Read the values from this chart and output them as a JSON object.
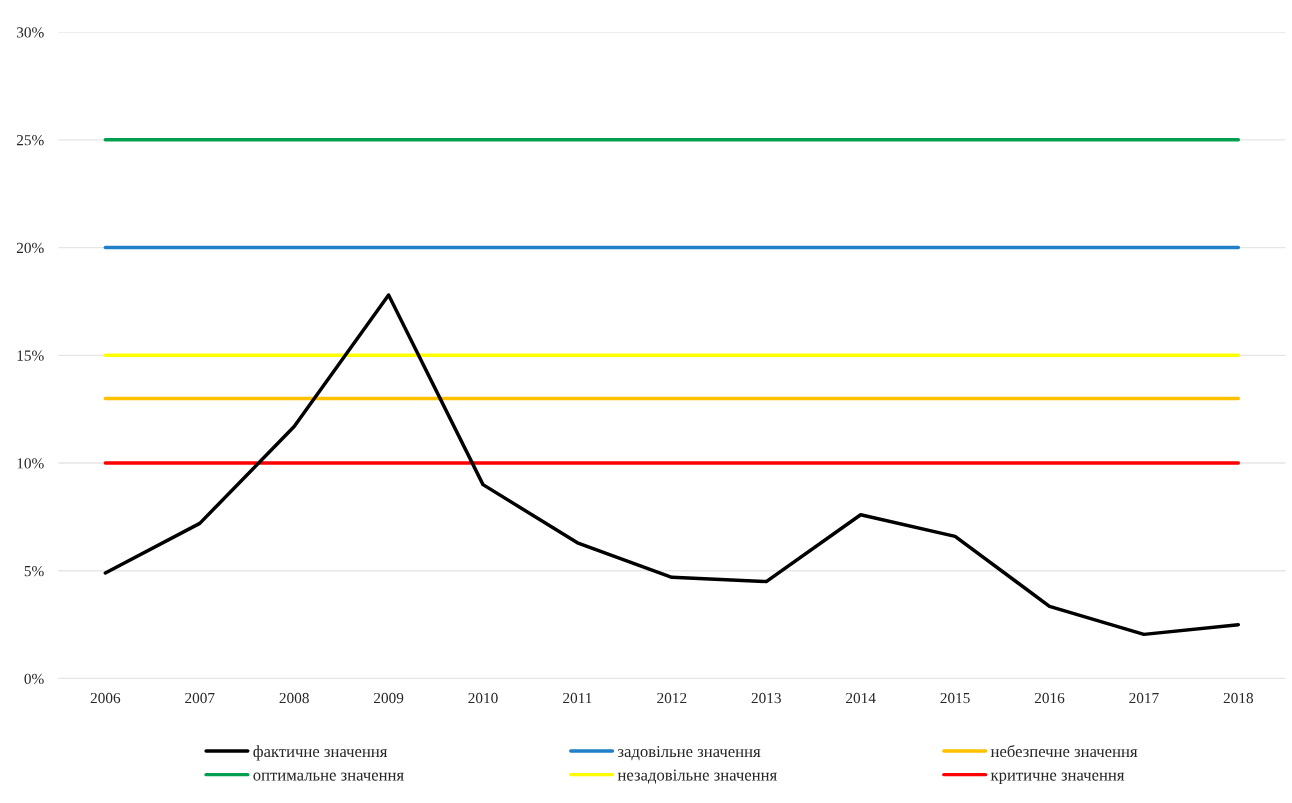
{
  "chart_data": {
    "type": "line",
    "categories": [
      "2006",
      "2007",
      "2008",
      "2009",
      "2010",
      "2011",
      "2012",
      "2013",
      "2014",
      "2015",
      "2016",
      "2017",
      "2018"
    ],
    "series": [
      {
        "name": "фактичне значення",
        "color": "#000000",
        "values": [
          4.9,
          7.2,
          11.7,
          17.8,
          9.0,
          6.3,
          4.7,
          4.5,
          7.6,
          6.6,
          3.35,
          2.05,
          2.5
        ]
      },
      {
        "name": "оптимальне значення",
        "color": "#00a050",
        "values": [
          25,
          25,
          25,
          25,
          25,
          25,
          25,
          25,
          25,
          25,
          25,
          25,
          25
        ]
      },
      {
        "name": "задовільне значення",
        "color": "#1f7fc8",
        "values": [
          20,
          20,
          20,
          20,
          20,
          20,
          20,
          20,
          20,
          20,
          20,
          20,
          20
        ]
      },
      {
        "name": "незадовільне значення",
        "color": "#ffff00",
        "values": [
          15,
          15,
          15,
          15,
          15,
          15,
          15,
          15,
          15,
          15,
          15,
          15,
          15
        ]
      },
      {
        "name": "небезпечне значення",
        "color": "#ffc000",
        "values": [
          13,
          13,
          13,
          13,
          13,
          13,
          13,
          13,
          13,
          13,
          13,
          13,
          13
        ]
      },
      {
        "name": "критичне значення",
        "color": "#ff0000",
        "values": [
          10,
          10,
          10,
          10,
          10,
          10,
          10,
          10,
          10,
          10,
          10,
          10,
          10
        ]
      }
    ],
    "ylim": [
      0,
      30
    ],
    "yticks": [
      {
        "value": 0,
        "label": "0%"
      },
      {
        "value": 5,
        "label": "5%"
      },
      {
        "value": 10,
        "label": "10%"
      },
      {
        "value": 15,
        "label": "15%"
      },
      {
        "value": 20,
        "label": "20%"
      },
      {
        "value": 25,
        "label": "25%"
      },
      {
        "value": 30,
        "label": "30%"
      }
    ],
    "grid": "y",
    "legend": "bottom",
    "marker": "none",
    "line_style": "solid"
  }
}
